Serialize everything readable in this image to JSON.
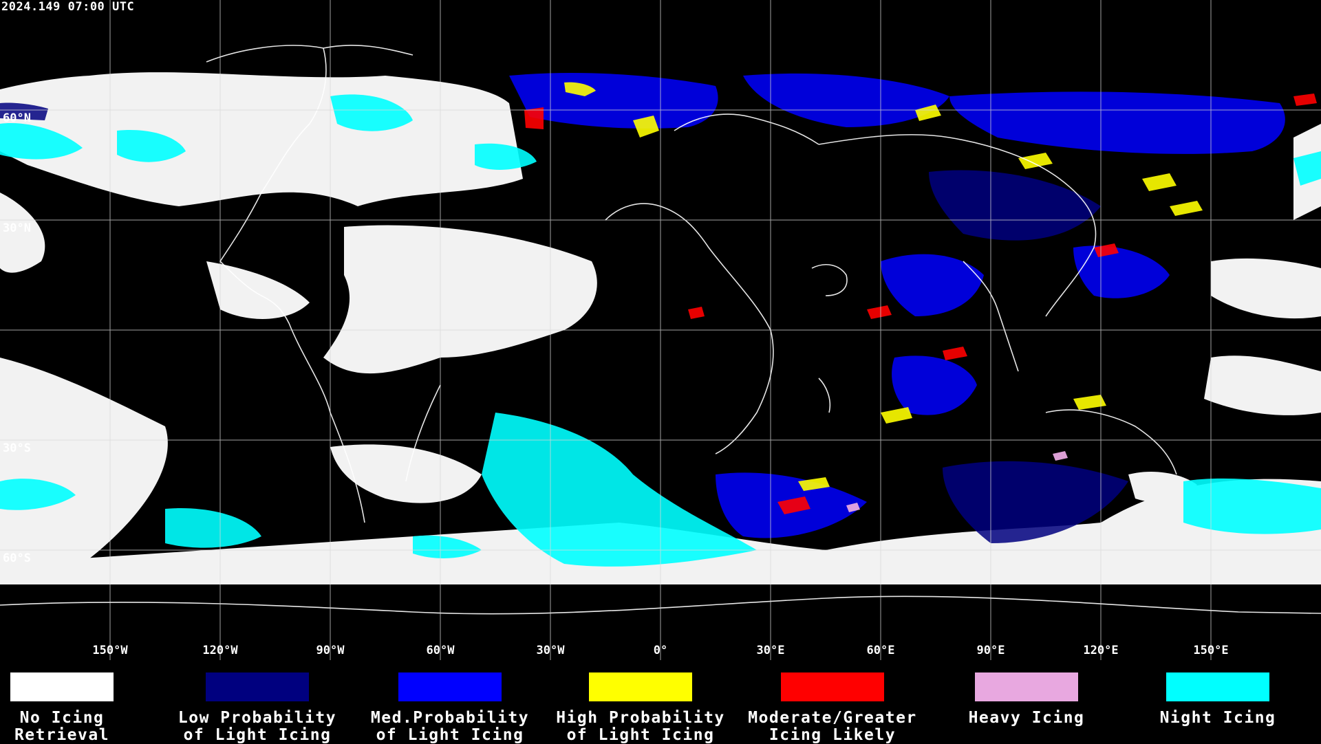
{
  "timestamp": "2024.149 07:00 UTC",
  "axes": {
    "longitudes": [
      "150°W",
      "120°W",
      "90°W",
      "60°W",
      "30°W",
      "0°",
      "30°E",
      "60°E",
      "90°E",
      "120°E",
      "150°E"
    ],
    "latitudes": [
      "60°N",
      "30°N",
      "30°S",
      "60°S"
    ]
  },
  "legend": [
    {
      "label": "No Icing\nRetrieval",
      "color": "#ffffff"
    },
    {
      "label": "Low Probability\nof Light Icing",
      "color": "#00007f"
    },
    {
      "label": "Med.Probability\nof Light Icing",
      "color": "#0000ff"
    },
    {
      "label": "High Probability\nof Light Icing",
      "color": "#ffff00"
    },
    {
      "label": "Moderate/Greater\nIcing Likely",
      "color": "#ff0000"
    },
    {
      "label": "Heavy Icing",
      "color": "#e8a8e0"
    },
    {
      "label": "Night Icing",
      "color": "#00ffff"
    }
  ]
}
